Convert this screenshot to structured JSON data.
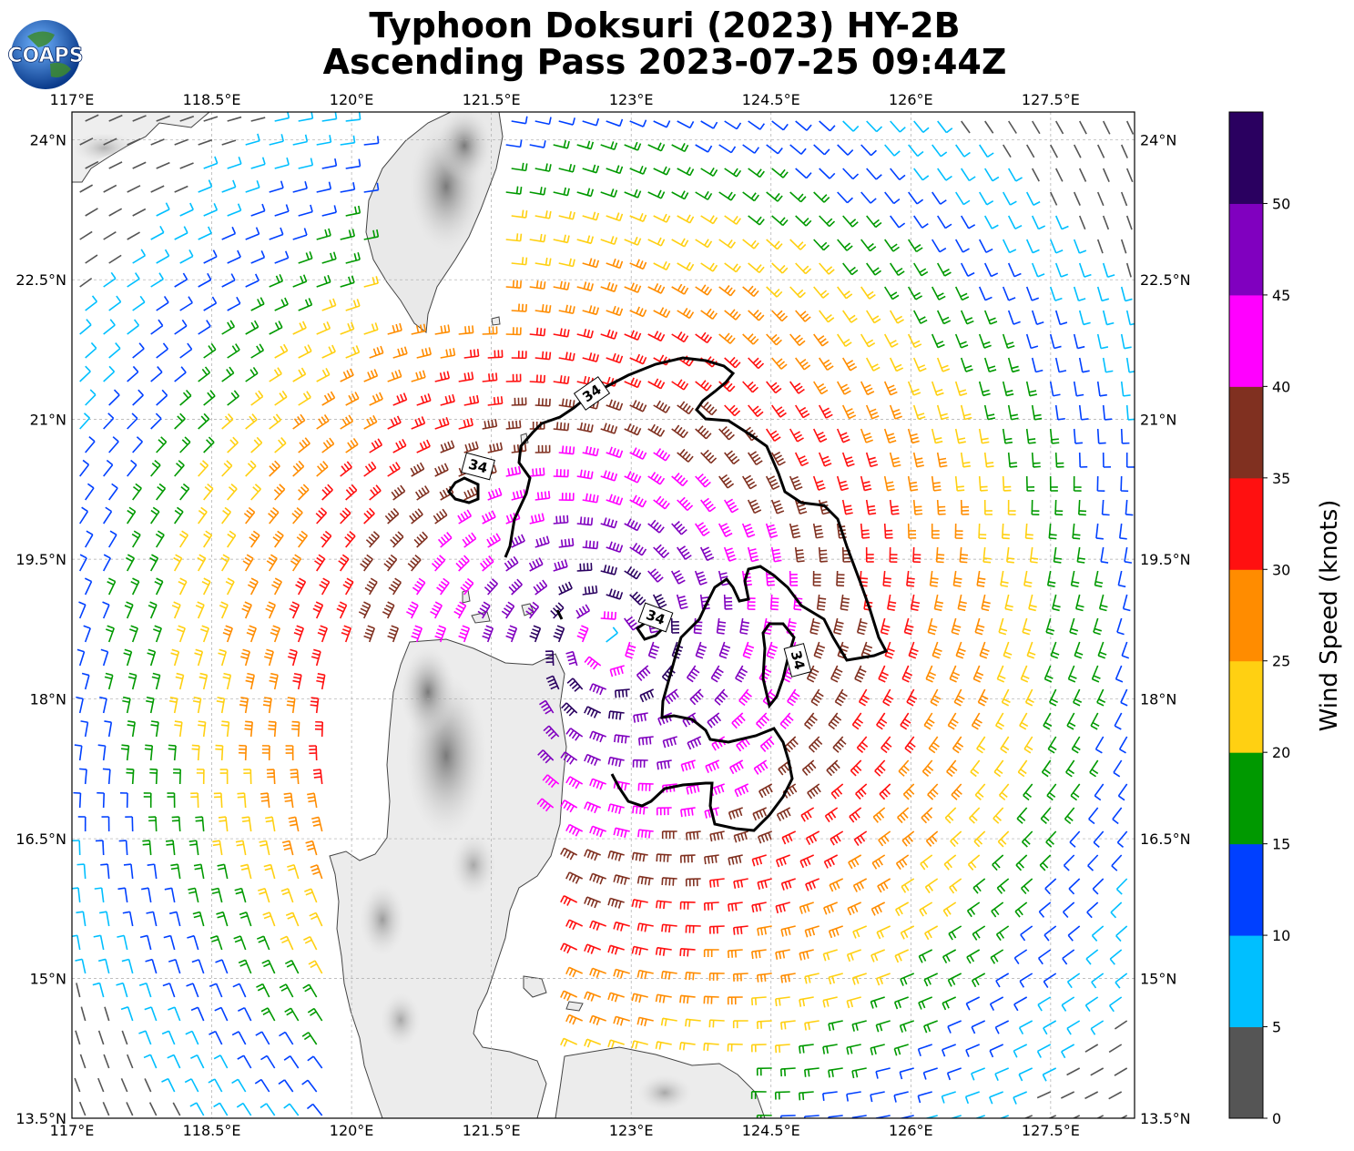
{
  "title_line1": "Typhoon Doksuri (2023) HY-2B",
  "title_line2": "Ascending Pass 2023-07-25 09:44Z",
  "logo_text": "COAPS",
  "colorbar": {
    "label": "Wind Speed (knots)",
    "ticks": [
      "0",
      "5",
      "10",
      "15",
      "20",
      "25",
      "30",
      "35",
      "40",
      "45",
      "50"
    ],
    "colors": [
      "#555555",
      "#00bfff",
      "#0040ff",
      "#009900",
      "#ffd012",
      "#ff8c00",
      "#ff1010",
      "#803020",
      "#ff00ff",
      "#8000bf",
      "#2a0060"
    ]
  },
  "map": {
    "lon_ticks": [
      "117°E",
      "118.5°E",
      "120°E",
      "121.5°E",
      "123°E",
      "124.5°E",
      "126°E",
      "127.5°E"
    ],
    "lat_ticks": [
      "24°N",
      "22.5°N",
      "21°N",
      "19.5°N",
      "18°N",
      "16.5°N",
      "15°N",
      "13.5°N"
    ],
    "lon_range": [
      117,
      128.4
    ],
    "lat_range": [
      13.5,
      24.3
    ],
    "storm_center": {
      "lon": 122.75,
      "lat": 18.6
    },
    "contour_level": "34",
    "contour_labels": [
      "34",
      "34",
      "34",
      "34"
    ],
    "land_areas": [
      "Taiwan",
      "Luzon",
      "Babuyan Islands"
    ]
  }
}
